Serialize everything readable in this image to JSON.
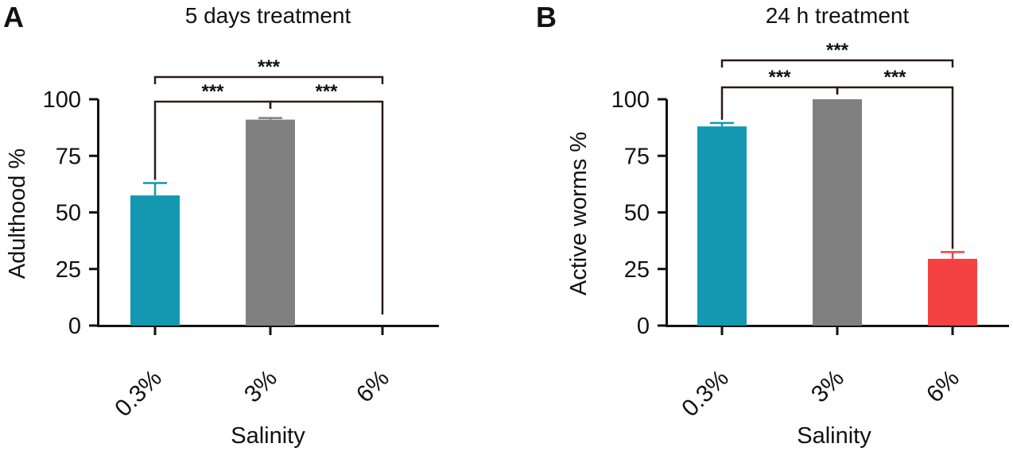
{
  "chart_data": [
    {
      "type": "bar",
      "panel": "A",
      "title": "5 days treatment",
      "xlabel": "Salinity",
      "ylabel": "Adulthood  %",
      "ylim": [
        0,
        100
      ],
      "yticks": [
        0,
        25,
        50,
        75,
        100
      ],
      "categories": [
        "0.3%",
        "3%",
        "6%"
      ],
      "values": [
        57.5,
        91,
        0
      ],
      "errors": [
        5.5,
        0.7,
        0
      ],
      "colors": [
        "#1298b0",
        "#808080",
        "#ffffff"
      ],
      "significance": [
        {
          "from": 0,
          "to": 1,
          "label": "***",
          "level": 1
        },
        {
          "from": 1,
          "to": 2,
          "label": "***",
          "level": 1
        },
        {
          "from": 0,
          "to": 2,
          "label": "***",
          "level": 2
        }
      ]
    },
    {
      "type": "bar",
      "panel": "B",
      "title": "24 h treatment",
      "xlabel": "Salinity",
      "ylabel": "Active worms %",
      "ylim": [
        0,
        100
      ],
      "yticks": [
        0,
        25,
        50,
        75,
        100
      ],
      "categories": [
        "0.3%",
        "3%",
        "6%"
      ],
      "values": [
        88,
        100,
        29.5
      ],
      "errors": [
        1.5,
        0,
        3
      ],
      "colors": [
        "#1298b0",
        "#808080",
        "#f44242"
      ],
      "significance": [
        {
          "from": 0,
          "to": 1,
          "label": "***",
          "level": 1
        },
        {
          "from": 1,
          "to": 2,
          "label": "***",
          "level": 1
        },
        {
          "from": 0,
          "to": 2,
          "label": "***",
          "level": 2
        }
      ]
    }
  ]
}
